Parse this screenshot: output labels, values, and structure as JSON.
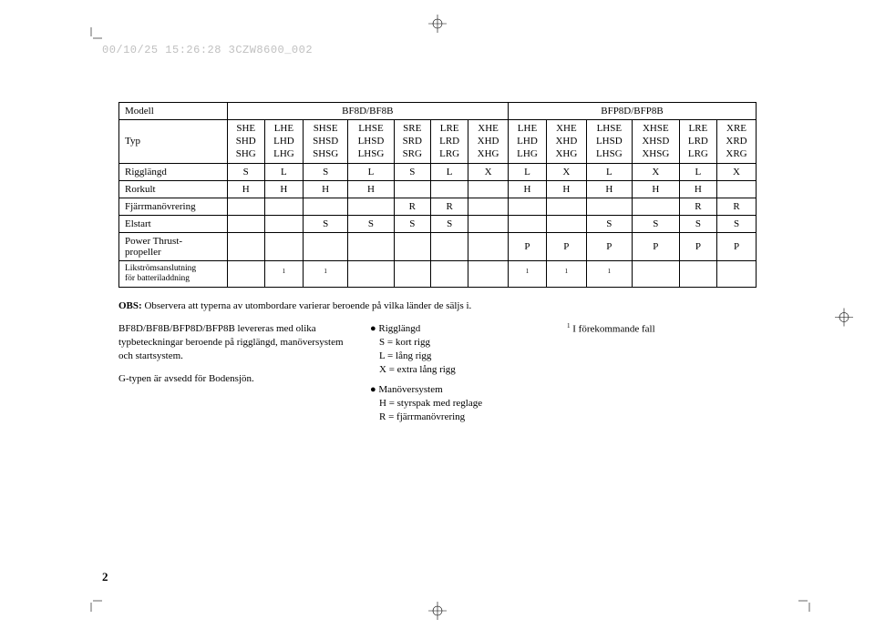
{
  "header_stamp": "00/10/25 15:26:28 3CZW8600_002",
  "page_number": "2",
  "table": {
    "row_labels": {
      "modell": "Modell",
      "typ": "Typ",
      "rigglangd": "Rigglängd",
      "rorkult": "Rorkult",
      "fjarr": "Fjärrmanövrering",
      "elstart": "Elstart",
      "power": "Power Thrust-\npropeller",
      "likstrom": "Likströmsanslutning\nför batteriladdning"
    },
    "model_headers": {
      "a": "BF8D/BF8B",
      "b": "BFP8D/BFP8B"
    },
    "typ_groups": [
      [
        "SHE",
        "SHD",
        "SHG"
      ],
      [
        "LHE",
        "LHD",
        "LHG"
      ],
      [
        "SHSE",
        "SHSD",
        "SHSG"
      ],
      [
        "LHSE",
        "LHSD",
        "LHSG"
      ],
      [
        "SRE",
        "SRD",
        "SRG"
      ],
      [
        "LRE",
        "LRD",
        "LRG"
      ],
      [
        "XHE",
        "XHD",
        "XHG"
      ],
      [
        "LHE",
        "LHD",
        "LHG"
      ],
      [
        "XHE",
        "XHD",
        "XHG"
      ],
      [
        "LHSE",
        "LHSD",
        "LHSG"
      ],
      [
        "XHSE",
        "XHSD",
        "XHSG"
      ],
      [
        "LRE",
        "LRD",
        "LRG"
      ],
      [
        "XRE",
        "XRD",
        "XRG"
      ]
    ],
    "rows": {
      "rigglangd": [
        "S",
        "L",
        "S",
        "L",
        "S",
        "L",
        "X",
        "L",
        "X",
        "L",
        "X",
        "L",
        "X"
      ],
      "rorkult": [
        "H",
        "H",
        "H",
        "H",
        "",
        "",
        "",
        "H",
        "H",
        "H",
        "H",
        "H",
        ""
      ],
      "fjarr": [
        "",
        "",
        "",
        "",
        "R",
        "R",
        "",
        "",
        "",
        "",
        "",
        "R",
        "R"
      ],
      "elstart": [
        "",
        "",
        "S",
        "S",
        "S",
        "S",
        "",
        "",
        "",
        "S",
        "S",
        "S",
        "S"
      ],
      "power": [
        "",
        "",
        "",
        "",
        "",
        "",
        "",
        "P",
        "P",
        "P",
        "P",
        "P",
        "P"
      ],
      "likstrom": [
        "",
        "1",
        "1",
        "",
        "",
        "",
        "",
        "1",
        "1",
        "1",
        "",
        "",
        ""
      ]
    }
  },
  "obs_line": "OBS: Observera att typerna av utombordare varierar beroende på vilka länder de säljs i.",
  "left_block": {
    "p1": "BF8D/BF8B/BFP8D/BFP8B levereras med olika typbeteckningar beroende på rigglängd, manöversystem och startsystem.",
    "p2": "G-typen är avsedd för Bodensjön."
  },
  "mid_block": {
    "rigg_head": "● Rigglängd",
    "rigg_lines": [
      "S = kort rigg",
      "L = lång rigg",
      "X = extra lång rigg"
    ],
    "man_head": "● Manöversystem",
    "man_lines": [
      "H = styrspak med reglage",
      "R = fjärrmanövrering"
    ]
  },
  "right_block": {
    "note": "I förekommande fall",
    "note_sup": "1"
  },
  "colors": {
    "page_bg": "#ffffff",
    "text": "#000000",
    "stamp": "#c0c0c0",
    "border": "#000000"
  }
}
